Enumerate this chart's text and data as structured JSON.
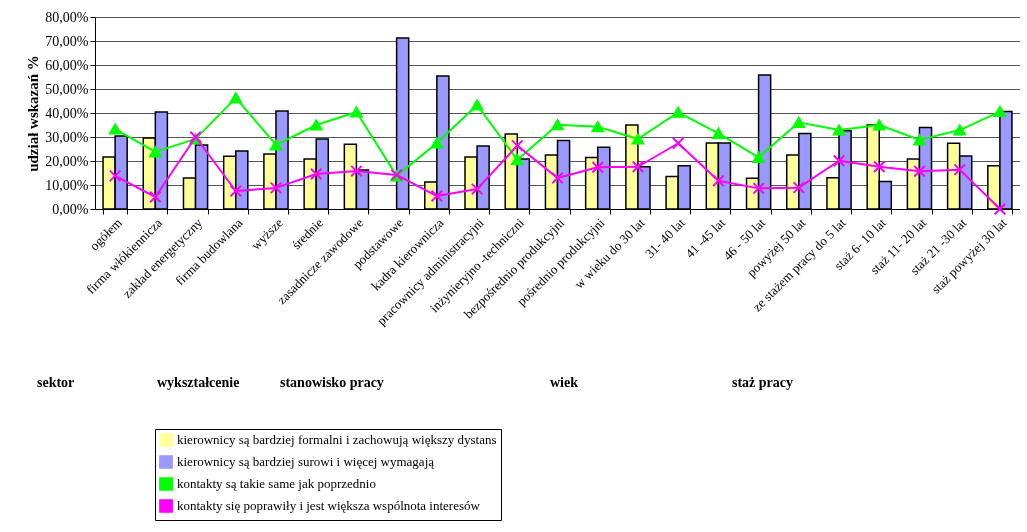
{
  "chart_data": {
    "type": "bar",
    "ylabel": "udział wskazań    %",
    "categories": [
      "ogółem",
      "firma włókiennicza",
      "zakład energetyczny",
      "firma budowlana",
      "wyższe",
      "średnie",
      "zasadnicze zawodowe",
      "podstawowe",
      "kadra kierownicza",
      "pracownicy administracyjni",
      "inżynieryjno -techniczni",
      "bezpośrednio produkcyjni",
      "pośrednio produkcyjni",
      "w wieku do 30 lat",
      "31- 40 lat",
      "41 -45 lat",
      "46 - 50 lat",
      "powyżej 50 lat",
      "ze stażem pracy do 5 lat",
      "staż 6- 10 lat",
      "staż 11- 20 lat",
      "staż 21 -30 lat",
      "staż powyżej 30 lat"
    ],
    "series": [
      {
        "name": "kierownicy są bardziej formalni i zachowują większy dystans",
        "color": "#ffff99",
        "values": [
          21.7,
          29.6,
          12.9,
          22,
          22.9,
          20.8,
          27,
          null,
          11.2,
          21.7,
          31.3,
          22.5,
          21.5,
          35,
          13.5,
          27.5,
          12.8,
          22.5,
          13,
          35,
          20.8,
          27.4,
          18
        ]
      },
      {
        "name": "kierownicy są bardziej surowi i więcej wymagają",
        "color": "#9999ff",
        "values": [
          30.4,
          40.4,
          26.7,
          24.2,
          40.8,
          29.2,
          16.2,
          71.3,
          55.4,
          26.2,
          20.8,
          28.5,
          25.7,
          17.6,
          18,
          27.5,
          55.8,
          31.5,
          32.6,
          11.5,
          34,
          22.1,
          40.6
        ]
      },
      {
        "name": "kontakty są takie same jak poprzednio",
        "type": "line",
        "color": "#00ff00",
        "marker": "triangle",
        "values": [
          33.3,
          23.8,
          29.2,
          46.3,
          26.7,
          35,
          40.4,
          13.8,
          27.5,
          43.3,
          20.5,
          35.1,
          34.3,
          29.2,
          40.3,
          31.5,
          21.5,
          36.1,
          32.9,
          35,
          28.8,
          32.9,
          40.6
        ]
      },
      {
        "name": "kontakty się poprawiły i jest większa wspólnota interesów",
        "type": "line",
        "color": "#ff00ff",
        "marker": "cross",
        "values": [
          13.8,
          5,
          30,
          7.5,
          8.8,
          14.6,
          15.8,
          14.2,
          5.4,
          8.3,
          26.4,
          12.9,
          17.4,
          17.6,
          27.4,
          11.8,
          8.6,
          8.9,
          20.1,
          17.6,
          15.7,
          16.4,
          0
        ]
      }
    ],
    "ylim": [
      0,
      80
    ],
    "yticks": [
      {
        "value": 0,
        "label": "0,00%"
      },
      {
        "value": 10,
        "label": "10,00%"
      },
      {
        "value": 20,
        "label": "20,00%"
      },
      {
        "value": 30,
        "label": "30,00%"
      },
      {
        "value": 40,
        "label": "40,00%"
      },
      {
        "value": 50,
        "label": "50,00%"
      },
      {
        "value": 60,
        "label": "60,00%"
      },
      {
        "value": 70,
        "label": "70,00%"
      },
      {
        "value": 80,
        "label": "80,00%"
      }
    ],
    "grid": "y",
    "legend": "bottom",
    "annotations": [
      "sektor",
      "wykształcenie",
      "stanowisko pracy",
      "wiek",
      "staż pracy"
    ]
  }
}
